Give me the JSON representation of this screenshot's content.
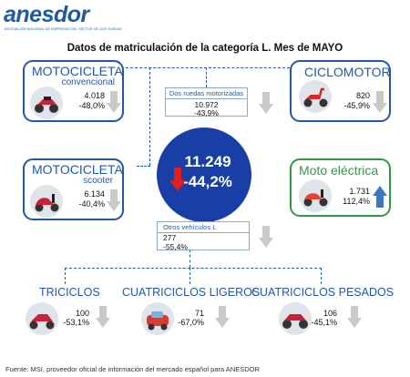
{
  "brand": {
    "name": "anesdor",
    "tagline": "ASOCIACIÓN NACIONAL DE EMPRESAS DEL SECTOR DE DOS RUEDAS"
  },
  "title": "Datos de matriculación de la categoría L. Mes de MAYO",
  "motocicleta_convencional": {
    "title": "MOTOCICLETA",
    "subtitle": "convencional",
    "units": "4.018",
    "change": "-48,0%"
  },
  "ciclomotor": {
    "title": "CICLOMOTOR",
    "units": "820",
    "change": "-45,9%"
  },
  "motocicleta_scooter": {
    "title": "MOTOCICLETA",
    "subtitle": "scooter",
    "units": "6.134",
    "change": "-40,4%"
  },
  "moto_electrica": {
    "title": "Moto eléctrica",
    "units": "1.731",
    "change": "112,4%"
  },
  "dos_ruedas": {
    "label": "Dos ruedas motorizadas",
    "units": "10.972",
    "change": "-43,9%"
  },
  "total": {
    "units": "11.249",
    "change": "-44,2%"
  },
  "otros": {
    "label": "Otros vehículos L",
    "units": "277",
    "change": "-55,4%"
  },
  "triciclos": {
    "title": "TRICICLOS",
    "units": "100",
    "change": "-53,1%"
  },
  "cuatriciclos_ligeros": {
    "title": "CUATRICICLOS LIGEROS",
    "units": "71",
    "change": "-67,0%"
  },
  "cuatriciclos_pesados": {
    "title": "CUATRICICLOS PESADOS",
    "units": "106",
    "change": "-45,1%"
  },
  "footer": "Fuente: MSI, proveedor oficial de información del mercado español para ANESDOR",
  "colors": {
    "brand_blue": "#2458a6",
    "circle_blue": "#173fa6",
    "green": "#2e9b44",
    "up_arrow": "#3c78c0",
    "down_arrow_red": "#e0201b",
    "down_arrow_gray": "#c9c9c9"
  }
}
